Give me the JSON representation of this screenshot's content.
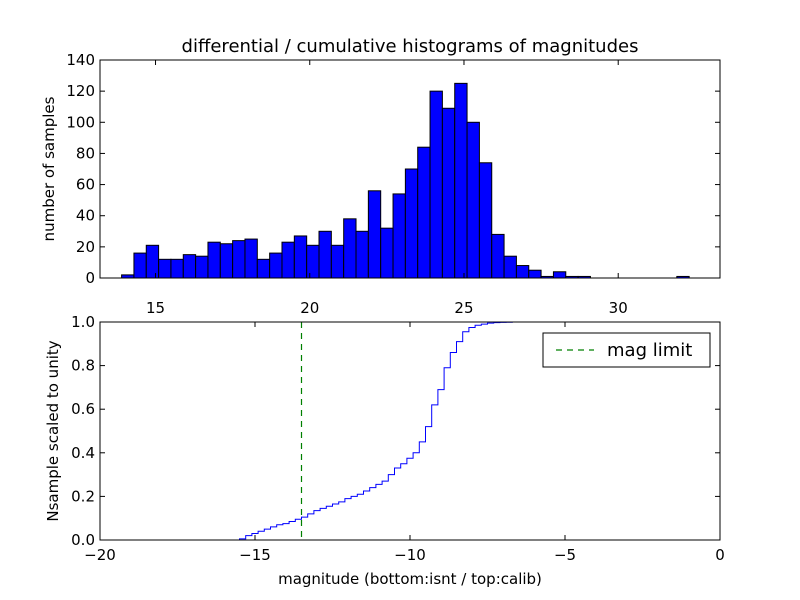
{
  "chart_data": [
    {
      "type": "bar",
      "title": "differential / cumulative histograms of magnitudes",
      "xlabel": "",
      "ylabel": "number of samples",
      "xlim": [
        13.2,
        33.3
      ],
      "ylim": [
        0,
        140
      ],
      "xticks": [
        "15",
        "20",
        "25",
        "30"
      ],
      "xtick_values": [
        15,
        20,
        25,
        30
      ],
      "yticks": [
        "0",
        "20",
        "40",
        "60",
        "80",
        "100",
        "120",
        "140"
      ],
      "ytick_values": [
        0,
        20,
        40,
        60,
        80,
        100,
        120,
        140
      ],
      "bar_color": "#0000ff",
      "bin_start": 13.9,
      "bin_width": 0.4,
      "values": [
        2,
        16,
        21,
        12,
        12,
        15,
        14,
        23,
        22,
        24,
        25,
        12,
        16,
        23,
        27,
        21,
        30,
        21,
        38,
        30,
        56,
        32,
        54,
        70,
        84,
        120,
        109,
        125,
        100,
        74,
        28,
        14,
        8,
        5,
        1,
        4,
        1,
        1,
        0,
        0,
        0,
        0,
        0,
        0,
        0,
        1
      ]
    },
    {
      "type": "line",
      "drawstyle": "steps",
      "xlabel": "magnitude (bottom:isnt / top:calib)",
      "ylabel": "Nsample scaled to unity",
      "xlim": [
        -20,
        0
      ],
      "ylim": [
        0,
        1
      ],
      "xticks": [
        "−20",
        "−15",
        "−10",
        "−5",
        "0"
      ],
      "xtick_values": [
        -20,
        -15,
        -10,
        -5,
        0
      ],
      "yticks": [
        "0.0",
        "0.2",
        "0.4",
        "0.6",
        "0.8",
        "1.0"
      ],
      "ytick_values": [
        0,
        0.2,
        0.4,
        0.6,
        0.8,
        1.0
      ],
      "line_color": "#0000ff",
      "step_x": [
        -20,
        -15.5,
        -15.3,
        -15.1,
        -14.9,
        -14.7,
        -14.5,
        -14.3,
        -14.1,
        -13.9,
        -13.7,
        -13.5,
        -13.3,
        -13.1,
        -12.9,
        -12.7,
        -12.5,
        -12.3,
        -12.1,
        -11.9,
        -11.7,
        -11.5,
        -11.3,
        -11.1,
        -10.9,
        -10.7,
        -10.5,
        -10.3,
        -10.1,
        -9.9,
        -9.7,
        -9.5,
        -9.3,
        -9.1,
        -8.9,
        -8.7,
        -8.5,
        -8.3,
        -8.1,
        -7.9,
        -7.7,
        -7.5,
        -7.3,
        -7.1,
        -6.9,
        -6.7,
        -6.5
      ],
      "step_y": [
        0,
        0.005,
        0.02,
        0.03,
        0.04,
        0.05,
        0.06,
        0.07,
        0.075,
        0.085,
        0.095,
        0.105,
        0.12,
        0.135,
        0.145,
        0.155,
        0.165,
        0.175,
        0.19,
        0.2,
        0.21,
        0.225,
        0.24,
        0.255,
        0.27,
        0.3,
        0.33,
        0.35,
        0.375,
        0.4,
        0.45,
        0.52,
        0.62,
        0.69,
        0.79,
        0.86,
        0.91,
        0.955,
        0.975,
        0.985,
        0.99,
        0.995,
        0.997,
        0.998,
        0.999,
        1.0,
        1.0
      ],
      "mag_limit_x": -13.5,
      "mag_limit_color": "#008000",
      "legend": {
        "label": "mag limit",
        "placement": "upper-right"
      }
    }
  ]
}
